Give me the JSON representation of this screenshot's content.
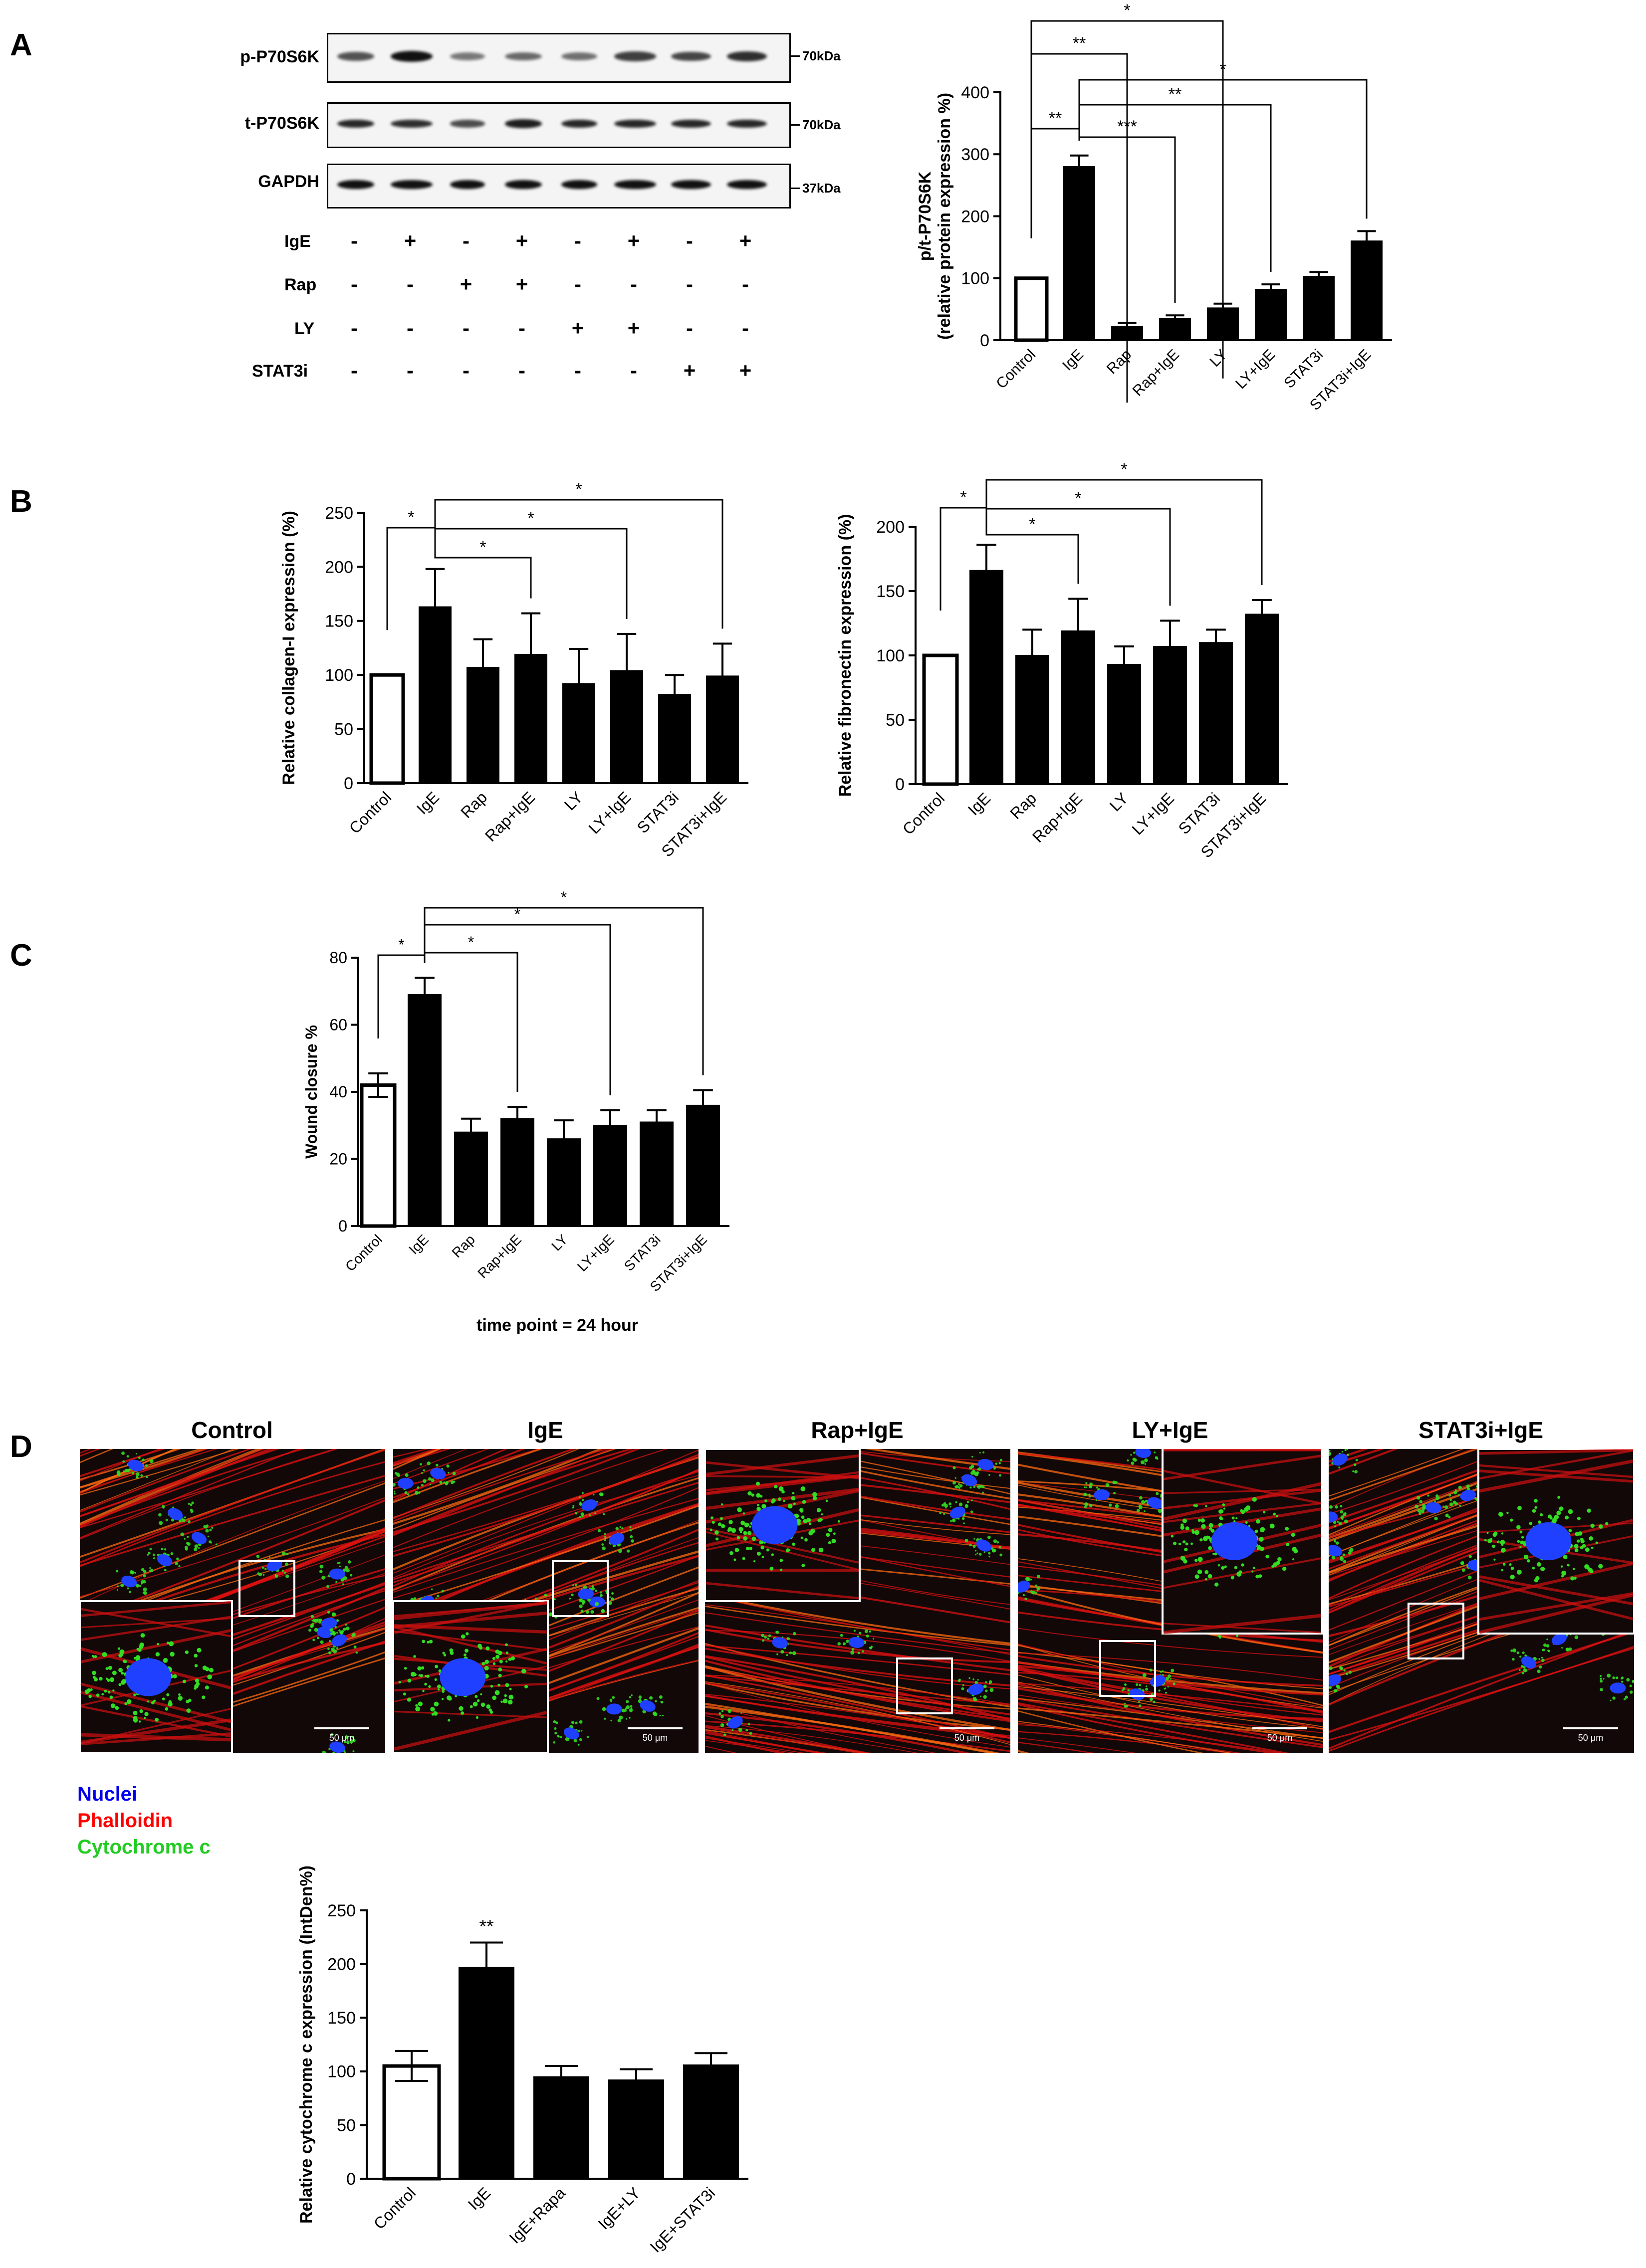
{
  "panels": {
    "A": "A",
    "B": "B",
    "C": "C",
    "D": "D"
  },
  "blot": {
    "rows": [
      {
        "name": "p-P70S6K",
        "kda": "70kDa"
      },
      {
        "name": "t-P70S6K",
        "kda": "70kDa"
      },
      {
        "name": "GAPDH",
        "kda": "37kDa"
      }
    ],
    "treatments": [
      {
        "name": "IgE",
        "signs": [
          "-",
          "+",
          "-",
          "+",
          "-",
          "+",
          "-",
          "+"
        ]
      },
      {
        "name": "Rap",
        "signs": [
          "-",
          "-",
          "+",
          "+",
          "-",
          "-",
          "-",
          "-"
        ]
      },
      {
        "name": "LY",
        "signs": [
          "-",
          "-",
          "-",
          "-",
          "+",
          "+",
          "-",
          "-"
        ]
      },
      {
        "name": "STAT3i",
        "signs": [
          "-",
          "-",
          "-",
          "-",
          "-",
          "-",
          "+",
          "+"
        ]
      }
    ],
    "band_intensity": [
      [
        0.55,
        1.0,
        0.3,
        0.4,
        0.35,
        0.7,
        0.65,
        0.8
      ],
      [
        0.85,
        0.8,
        0.6,
        0.9,
        0.85,
        0.85,
        0.85,
        0.85
      ],
      [
        1.0,
        1.0,
        1.0,
        1.0,
        1.0,
        1.0,
        1.0,
        1.0
      ]
    ]
  },
  "chart_data": [
    {
      "id": "A",
      "type": "bar",
      "categories": [
        "Control",
        "IgE",
        "Rap",
        "Rap+IgE",
        "LY",
        "LY+IgE",
        "STAT3i",
        "STAT3i+IgE"
      ],
      "values": [
        100,
        280,
        22,
        35,
        52,
        82,
        103,
        160
      ],
      "errors": [
        0,
        18,
        6,
        5,
        7,
        8,
        7,
        16
      ],
      "ylabel": "p/t-P70S6K",
      "ylabel2": "(relative protein expression %)",
      "ylim": [
        0,
        400
      ],
      "yticks": [
        0,
        100,
        200,
        300,
        400
      ],
      "open_bars": [
        0
      ],
      "significance": [
        {
          "from": 1,
          "to": 0,
          "label": "**"
        },
        {
          "from": 1,
          "to": 3,
          "label": "***"
        },
        {
          "from": 1,
          "to": 5,
          "label": "**"
        },
        {
          "from": 1,
          "to": 7,
          "label": "*"
        },
        {
          "from": 0,
          "to": 2,
          "label": "**"
        },
        {
          "from": 0,
          "to": 4,
          "label": "*"
        }
      ]
    },
    {
      "id": "B1",
      "type": "bar",
      "categories": [
        "Control",
        "IgE",
        "Rap",
        "Rap+IgE",
        "LY",
        "LY+IgE",
        "STAT3i",
        "STAT3i+IgE"
      ],
      "values": [
        100,
        163,
        107,
        119,
        92,
        104,
        82,
        99
      ],
      "errors": [
        0,
        35,
        26,
        38,
        32,
        34,
        18,
        30
      ],
      "ylabel": "Relative collagen-I expression (%)",
      "ylim": [
        0,
        250
      ],
      "yticks": [
        0,
        50,
        100,
        150,
        200,
        250
      ],
      "open_bars": [
        0
      ],
      "significance": [
        {
          "from": 1,
          "to": 0,
          "label": "*"
        },
        {
          "from": 1,
          "to": 3,
          "label": "*"
        },
        {
          "from": 1,
          "to": 5,
          "label": "*"
        },
        {
          "from": 1,
          "to": 7,
          "label": "*"
        }
      ]
    },
    {
      "id": "B2",
      "type": "bar",
      "categories": [
        "Control",
        "IgE",
        "Rap",
        "Rap+IgE",
        "LY",
        "LY+IgE",
        "STAT3i",
        "STAT3i+IgE"
      ],
      "values": [
        100,
        166,
        100,
        119,
        93,
        107,
        110,
        132
      ],
      "errors": [
        0,
        20,
        20,
        25,
        14,
        20,
        10,
        11
      ],
      "ylabel": "Relative fibronectin expression (%)",
      "ylim": [
        0,
        200
      ],
      "yticks": [
        0,
        50,
        100,
        150,
        200
      ],
      "open_bars": [
        0
      ],
      "significance": [
        {
          "from": 1,
          "to": 0,
          "label": "*"
        },
        {
          "from": 1,
          "to": 3,
          "label": "*"
        },
        {
          "from": 1,
          "to": 5,
          "label": "*"
        },
        {
          "from": 1,
          "to": 7,
          "label": "*"
        }
      ]
    },
    {
      "id": "C",
      "type": "bar",
      "categories": [
        "Control",
        "IgE",
        "Rap",
        "Rap+IgE",
        "LY",
        "LY+IgE",
        "STAT3i",
        "STAT3i+IgE"
      ],
      "values": [
        42,
        69,
        28,
        32,
        26,
        30,
        31,
        36
      ],
      "errors": [
        3.5,
        5,
        4,
        3.5,
        5.5,
        4.5,
        3.5,
        4.5
      ],
      "ylabel": "Wound closure %",
      "ylim": [
        0,
        80
      ],
      "yticks": [
        0,
        20,
        40,
        60,
        80
      ],
      "open_bars": [
        0
      ],
      "significance": [
        {
          "from": 1,
          "to": 0,
          "label": "*"
        },
        {
          "from": 1,
          "to": 3,
          "label": "*"
        },
        {
          "from": 1,
          "to": 5,
          "label": "*"
        },
        {
          "from": 1,
          "to": 7,
          "label": "*"
        }
      ]
    },
    {
      "id": "D",
      "type": "bar",
      "categories": [
        "Control",
        "IgE",
        "IgE+Rapa",
        "IgE+LY",
        "IgE+STAT3i"
      ],
      "values": [
        105,
        197,
        95,
        92,
        106
      ],
      "errors": [
        14,
        23,
        10,
        10,
        11
      ],
      "ylabel": "Relative cytochrome c expression (IntDen%)",
      "ylim": [
        0,
        250
      ],
      "yticks": [
        0,
        50,
        100,
        150,
        200,
        250
      ],
      "open_bars": [
        0
      ],
      "star_labels": [
        {
          "index": 1,
          "label": "**"
        }
      ],
      "significance": []
    }
  ],
  "c_caption": "time point = 24 hour",
  "micro": {
    "panels": [
      {
        "title": "Control",
        "scale": "50 μm"
      },
      {
        "title": "IgE",
        "scale": "50 μm"
      },
      {
        "title": "Rap+IgE",
        "scale": "50 μm"
      },
      {
        "title": "LY+IgE",
        "scale": "50 μm"
      },
      {
        "title": "STAT3i+IgE",
        "scale": "50 μm"
      }
    ],
    "legend": [
      {
        "label": "Nuclei",
        "color": "#0000ee"
      },
      {
        "label": "Phalloidin",
        "color": "#ff0000"
      },
      {
        "label": "Cytochrome c",
        "color": "#22cc22"
      }
    ]
  }
}
